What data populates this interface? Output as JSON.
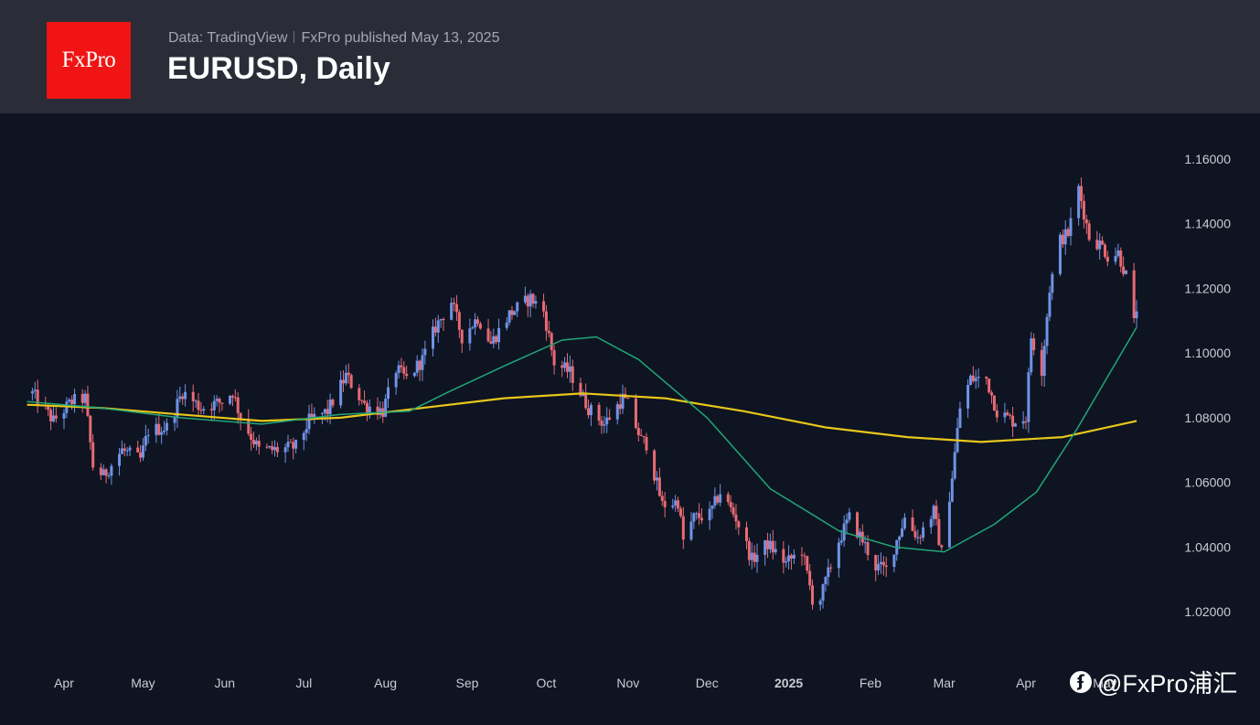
{
  "header": {
    "logo_text": "FxPro",
    "data_source": "Data: TradingView",
    "published": "FxPro published May 13, 2025",
    "title": "EURUSD, Daily"
  },
  "watermark": {
    "text": "@FxPro浦汇",
    "icon": "weibo-icon"
  },
  "colors": {
    "background": "#0e1421",
    "header": "#2a2d37",
    "logo": "#f01414",
    "up": "#6f93e6",
    "down": "#e86a74",
    "ma_short": "#20a77a",
    "ma_long": "#e8c71b",
    "axis_text": "#c9ccd3"
  },
  "chart_data": {
    "type": "candlestick",
    "title": "EURUSD, Daily",
    "ylim": [
      1.012,
      1.162
    ],
    "y_ticks": [
      "1.16000",
      "1.14000",
      "1.12000",
      "1.10000",
      "1.08000",
      "1.06000",
      "1.04000",
      "1.02000"
    ],
    "x_ticks": [
      "Apr",
      "May",
      "Jun",
      "Jul",
      "Aug",
      "Sep",
      "Oct",
      "Nov",
      "Dec",
      "2025",
      "Feb",
      "Mar",
      "Apr",
      "May"
    ],
    "grid": false,
    "price_path": [
      [
        "2024-03-20",
        1.0875
      ],
      [
        "2024-03-28",
        1.079
      ],
      [
        "2024-04-04",
        1.085
      ],
      [
        "2024-04-09",
        1.086
      ],
      [
        "2024-04-12",
        1.065
      ],
      [
        "2024-04-16",
        1.062
      ],
      [
        "2024-04-23",
        1.07
      ],
      [
        "2024-04-30",
        1.067
      ],
      [
        "2024-05-03",
        1.076
      ],
      [
        "2024-05-10",
        1.077
      ],
      [
        "2024-05-16",
        1.088
      ],
      [
        "2024-05-23",
        1.083
      ],
      [
        "2024-05-31",
        1.085
      ],
      [
        "2024-06-04",
        1.088
      ],
      [
        "2024-06-07",
        1.08
      ],
      [
        "2024-06-14",
        1.07
      ],
      [
        "2024-06-21",
        1.07
      ],
      [
        "2024-06-28",
        1.071
      ],
      [
        "2024-07-03",
        1.079
      ],
      [
        "2024-07-10",
        1.082
      ],
      [
        "2024-07-17",
        1.093
      ],
      [
        "2024-07-24",
        1.084
      ],
      [
        "2024-07-31",
        1.082
      ],
      [
        "2024-08-05",
        1.095
      ],
      [
        "2024-08-09",
        1.092
      ],
      [
        "2024-08-15",
        1.098
      ],
      [
        "2024-08-20",
        1.108
      ],
      [
        "2024-08-26",
        1.116
      ],
      [
        "2024-08-30",
        1.105
      ],
      [
        "2024-09-05",
        1.111
      ],
      [
        "2024-09-10",
        1.103
      ],
      [
        "2024-09-17",
        1.112
      ],
      [
        "2024-09-25",
        1.117
      ],
      [
        "2024-09-30",
        1.113
      ],
      [
        "2024-10-04",
        1.097
      ],
      [
        "2024-10-10",
        1.094
      ],
      [
        "2024-10-17",
        1.083
      ],
      [
        "2024-10-23",
        1.078
      ],
      [
        "2024-10-30",
        1.086
      ],
      [
        "2024-11-01",
        1.084
      ],
      [
        "2024-11-06",
        1.073
      ],
      [
        "2024-11-08",
        1.072
      ],
      [
        "2024-11-14",
        1.053
      ],
      [
        "2024-11-20",
        1.054
      ],
      [
        "2024-11-22",
        1.042
      ],
      [
        "2024-11-26",
        1.049
      ],
      [
        "2024-12-02",
        1.05
      ],
      [
        "2024-12-06",
        1.057
      ],
      [
        "2024-12-12",
        1.049
      ],
      [
        "2024-12-18",
        1.036
      ],
      [
        "2024-12-24",
        1.041
      ],
      [
        "2024-12-31",
        1.035
      ],
      [
        "2025-01-06",
        1.039
      ],
      [
        "2025-01-10",
        1.024
      ],
      [
        "2025-01-13",
        1.024
      ],
      [
        "2025-01-20",
        1.042
      ],
      [
        "2025-01-24",
        1.049
      ],
      [
        "2025-01-29",
        1.042
      ],
      [
        "2025-02-03",
        1.034
      ],
      [
        "2025-02-07",
        1.033
      ],
      [
        "2025-02-14",
        1.049
      ],
      [
        "2025-02-19",
        1.043
      ],
      [
        "2025-02-25",
        1.051
      ],
      [
        "2025-02-28",
        1.038
      ],
      [
        "2025-03-04",
        1.062
      ],
      [
        "2025-03-07",
        1.083
      ],
      [
        "2025-03-11",
        1.092
      ],
      [
        "2025-03-17",
        1.092
      ],
      [
        "2025-03-21",
        1.082
      ],
      [
        "2025-03-27",
        1.079
      ],
      [
        "2025-04-01",
        1.08
      ],
      [
        "2025-04-03",
        1.105
      ],
      [
        "2025-04-07",
        1.095
      ],
      [
        "2025-04-10",
        1.12
      ],
      [
        "2025-04-14",
        1.135
      ],
      [
        "2025-04-17",
        1.137
      ],
      [
        "2025-04-21",
        1.151
      ],
      [
        "2025-04-25",
        1.136
      ],
      [
        "2025-04-30",
        1.133
      ],
      [
        "2025-05-02",
        1.13
      ],
      [
        "2025-05-06",
        1.131
      ],
      [
        "2025-05-09",
        1.124
      ],
      [
        "2025-05-12",
        1.109
      ],
      [
        "2025-05-13",
        1.114
      ]
    ],
    "series": [
      {
        "name": "",
        "type": "ma_long",
        "color": "#e8c71b",
        "points": [
          [
            "2024-03-18",
            1.084
          ],
          [
            "2024-04-15",
            1.083
          ],
          [
            "2024-05-15",
            1.081
          ],
          [
            "2024-06-15",
            1.079
          ],
          [
            "2024-07-15",
            1.08
          ],
          [
            "2024-08-15",
            1.083
          ],
          [
            "2024-09-15",
            1.086
          ],
          [
            "2024-10-15",
            1.0875
          ],
          [
            "2024-11-15",
            1.086
          ],
          [
            "2024-12-15",
            1.082
          ],
          [
            "2025-01-15",
            1.077
          ],
          [
            "2025-02-15",
            1.074
          ],
          [
            "2025-03-15",
            1.0725
          ],
          [
            "2025-04-15",
            1.074
          ],
          [
            "2025-05-13",
            1.079
          ]
        ]
      },
      {
        "name": "",
        "type": "ma_short",
        "color": "#20a77a",
        "points": [
          [
            "2024-03-18",
            1.085
          ],
          [
            "2024-04-15",
            1.083
          ],
          [
            "2024-05-15",
            1.08
          ],
          [
            "2024-06-15",
            1.078
          ],
          [
            "2024-07-15",
            1.081
          ],
          [
            "2024-08-10",
            1.082
          ],
          [
            "2024-08-25",
            1.088
          ],
          [
            "2024-09-15",
            1.096
          ],
          [
            "2024-10-07",
            1.104
          ],
          [
            "2024-10-20",
            1.105
          ],
          [
            "2024-11-05",
            1.098
          ],
          [
            "2024-12-01",
            1.08
          ],
          [
            "2024-12-25",
            1.058
          ],
          [
            "2025-01-20",
            1.045
          ],
          [
            "2025-02-10",
            1.04
          ],
          [
            "2025-03-01",
            1.0385
          ],
          [
            "2025-03-20",
            1.047
          ],
          [
            "2025-04-05",
            1.057
          ],
          [
            "2025-04-20",
            1.076
          ],
          [
            "2025-05-13",
            1.108
          ]
        ]
      }
    ]
  }
}
